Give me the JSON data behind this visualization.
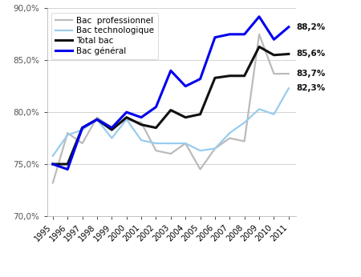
{
  "years": [
    1995,
    1996,
    1997,
    1998,
    1999,
    2000,
    2001,
    2002,
    2003,
    2004,
    2005,
    2006,
    2007,
    2008,
    2009,
    2010,
    2011
  ],
  "bac_general": [
    75.0,
    74.5,
    78.5,
    79.3,
    78.5,
    80.0,
    79.5,
    80.5,
    84.0,
    82.5,
    83.2,
    87.2,
    87.5,
    87.5,
    89.2,
    87.0,
    88.2
  ],
  "bac_technologique": [
    75.8,
    77.8,
    78.3,
    79.3,
    77.5,
    79.3,
    77.3,
    77.0,
    77.0,
    77.0,
    76.3,
    76.5,
    78.0,
    79.0,
    80.3,
    79.8,
    82.3
  ],
  "bac_professionnel": [
    73.2,
    78.0,
    77.0,
    79.5,
    78.5,
    79.3,
    79.0,
    76.3,
    76.0,
    77.0,
    74.5,
    76.5,
    77.5,
    77.2,
    87.5,
    83.7,
    83.7
  ],
  "total_bac": [
    75.0,
    75.0,
    78.5,
    79.3,
    78.3,
    79.5,
    78.8,
    78.5,
    80.2,
    79.5,
    79.8,
    83.3,
    83.5,
    83.5,
    86.3,
    85.5,
    85.6
  ],
  "labels": {
    "bac_general": "Bac général",
    "bac_technologique": "Bac technologique",
    "bac_professionnel": "Bac  professionnel",
    "total_bac": "Total bac"
  },
  "annotations": [
    {
      "text": "88,2%",
      "y": 88.2
    },
    {
      "text": "85,6%",
      "y": 85.6
    },
    {
      "text": "83,7%",
      "y": 83.7
    },
    {
      "text": "82,3%",
      "y": 82.3
    }
  ],
  "colors": {
    "bac_general": "#0000EE",
    "bac_technologique": "#99CCEE",
    "bac_professionnel": "#BBBBBB",
    "total_bac": "#111111"
  },
  "ylim": [
    70.0,
    90.0
  ],
  "yticks": [
    70.0,
    75.0,
    80.0,
    85.0,
    90.0
  ],
  "background_color": "#FFFFFF",
  "linewidth_thick": 2.2,
  "linewidth_thin": 1.6
}
